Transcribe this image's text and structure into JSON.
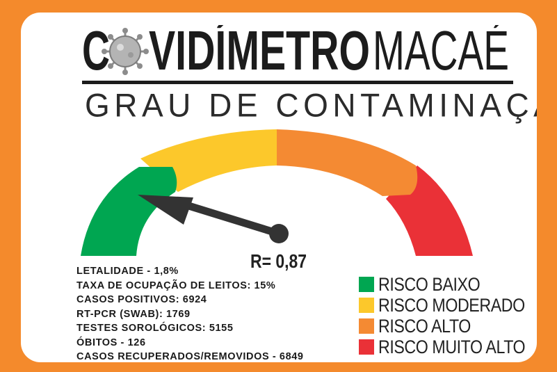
{
  "header": {
    "title_co": "C",
    "title_vid": "VIDÍMETRO",
    "title_city": "MACAÉ",
    "subtitle": "GRAU DE CONTAMINAÇÃO",
    "virus_icon": "virus-icon"
  },
  "gauge": {
    "r_value": "R= 0,87",
    "segment_colors": {
      "green": "#00a651",
      "yellow": "#fcc82b",
      "orange": "#f48a33",
      "red": "#ea3137"
    },
    "needle_color": "#333333"
  },
  "stats": [
    "LETALIDADE - 1,8%",
    "TAXA DE OCUPAÇÃO DE LEITOS: 15%",
    "CASOS POSITIVOS: 6924",
    "RT-PCR (SWAB): 1769",
    "TESTES SOROLÓGICOS: 5155",
    "ÓBITOS - 126",
    "CASOS RECUPERADOS/REMOVIDOS - 6849"
  ],
  "legend": [
    {
      "label": "RISCO BAIXO",
      "color": "#00a651"
    },
    {
      "label": "RISCO MODERADO",
      "color": "#fcc82b"
    },
    {
      "label": "RISCO ALTO",
      "color": "#f48a33"
    },
    {
      "label": "RISCO MUITO ALTO",
      "color": "#ea3137"
    }
  ]
}
